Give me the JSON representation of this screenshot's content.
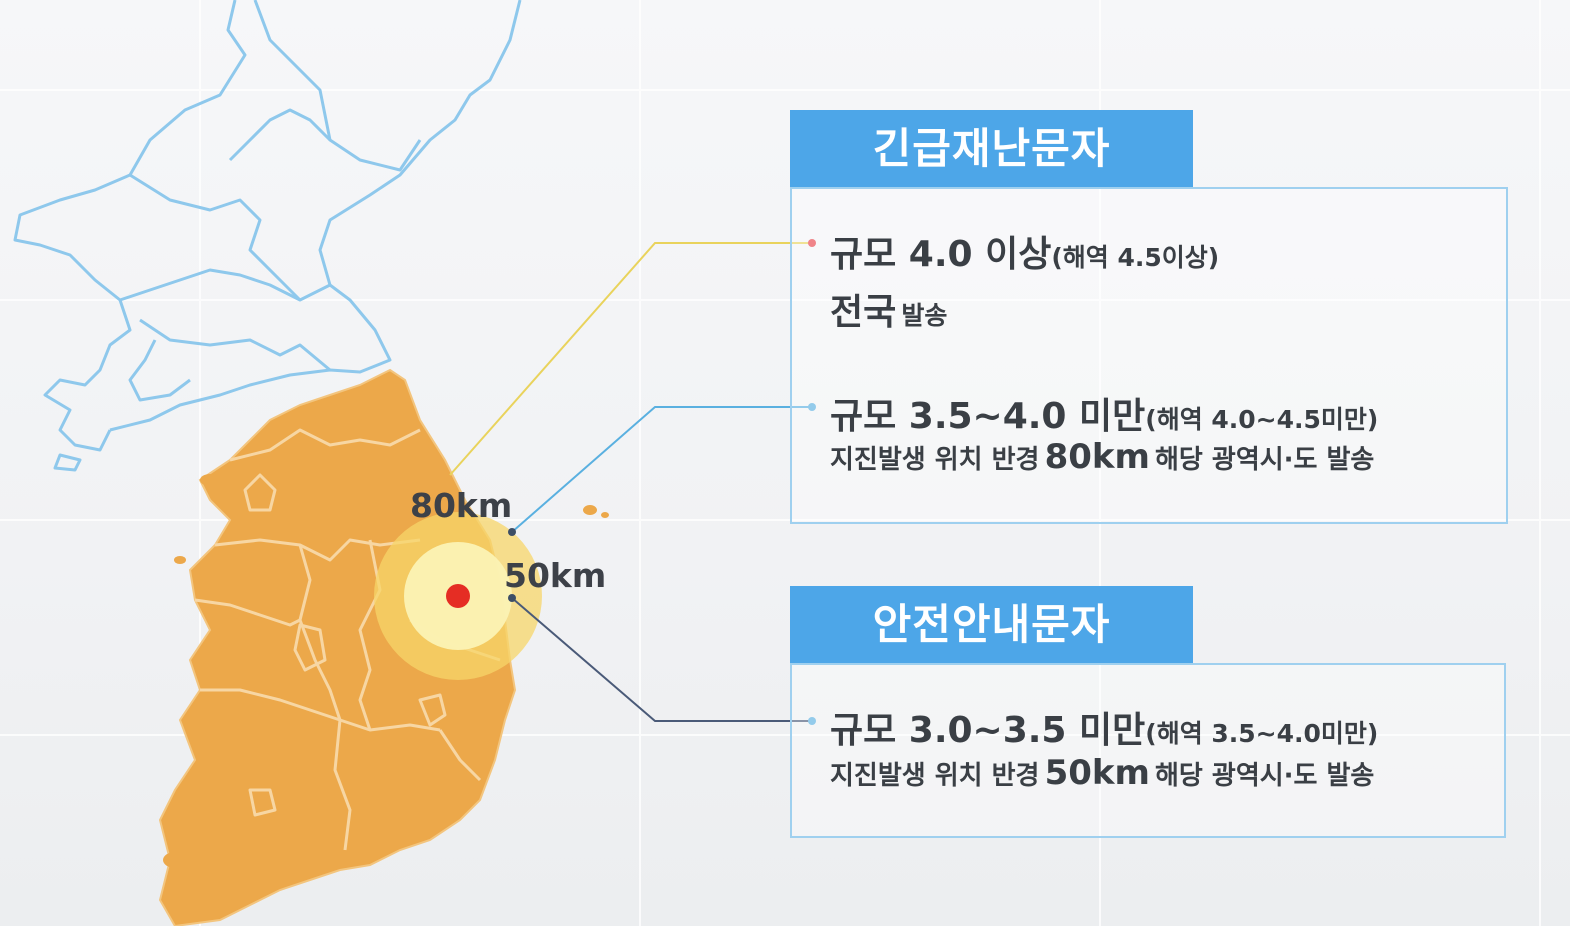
{
  "colors": {
    "land_outline": "#8ec8ec",
    "korea_fill": "#eca84a",
    "korea_border": "#f5d6a8",
    "epicenter": "#e52d24",
    "ring_outer": "#f7d66a",
    "ring_inner": "#fbf2b4",
    "title_bg": "#4da6e8",
    "emergency_line": "#e9d35c",
    "zone_line_80": "#5ab0e0",
    "zone_line_50": "#4a5a78"
  },
  "map": {
    "label_80": "80km",
    "label_50": "50km"
  },
  "emergency_panel": {
    "title": "긴급재난문자",
    "item1": {
      "main": "규모 4.0 이상",
      "sub": "(해역 4.5이상)",
      "line2_main": "전국",
      "line2_sub": "발송"
    },
    "item2": {
      "main": "규모 3.5~4.0 미만",
      "sub": "(해역 4.0~4.5미만)",
      "line2_pre": "지진발생 위치 반경",
      "line2_dist": "80km",
      "line2_post": "해당 광역시·도 발송"
    }
  },
  "safety_panel": {
    "title": "안전안내문자",
    "item1": {
      "main": "규모 3.0~3.5 미만",
      "sub": "(해역 3.5~4.0미만)",
      "line2_pre": "지진발생 위치 반경",
      "line2_dist": "50km",
      "line2_post": "해당 광역시·도 발송"
    }
  }
}
